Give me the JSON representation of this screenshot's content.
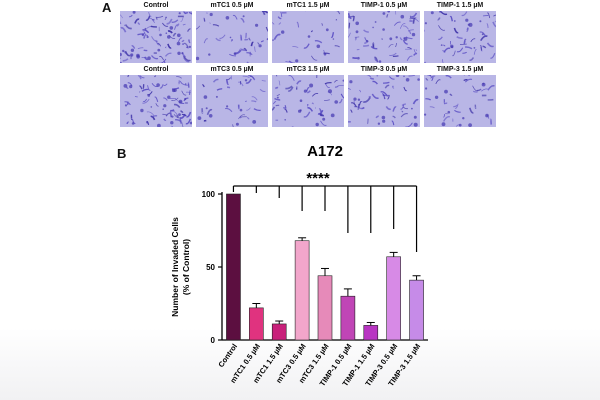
{
  "panel_a": {
    "label": "A",
    "row1": [
      "Control",
      "mTC1 0.5 µM",
      "mTC1 1.5 µM",
      "TIMP-1 0.5 µM",
      "TIMP-1 1.5 µM"
    ],
    "row2": [
      "Control",
      "mTC3 0.5 µM",
      "mTC3 1.5 µM",
      "TIMP-3 0.5 µM",
      "TIMP-3 1.5 µM"
    ],
    "stain_color": "#6a5acd"
  },
  "panel_b": {
    "label": "B"
  },
  "chart_data": {
    "type": "bar",
    "title": "A172",
    "ylabel_line1": "Number of Invaded Cells",
    "ylabel_line2": "(% of Control)",
    "xlabel": "",
    "ylim": [
      0,
      100
    ],
    "yticks": [
      0,
      50,
      100
    ],
    "significance": "****",
    "grid": false,
    "categories": [
      "Control",
      "mTC1 0.5 µM",
      "mTC1 1.5 µM",
      "mTC3 0.5 µM",
      "mTC3 1.5 µM",
      "TIMP-1 0.5 µM",
      "TIMP-1 1.5 µM",
      "TIMP-3 0.5 µM",
      "TIMP-3 1.5 µM"
    ],
    "values": [
      100,
      22,
      11,
      68,
      44,
      30,
      10,
      57,
      41
    ],
    "errors": [
      0,
      3,
      2,
      2,
      5,
      5,
      2,
      3,
      3
    ],
    "colors": [
      "#5c0f40",
      "#e0337f",
      "#c8207a",
      "#f2a6cb",
      "#e68ab9",
      "#c045b6",
      "#b834c2",
      "#d78ae6",
      "#c68be8"
    ]
  }
}
